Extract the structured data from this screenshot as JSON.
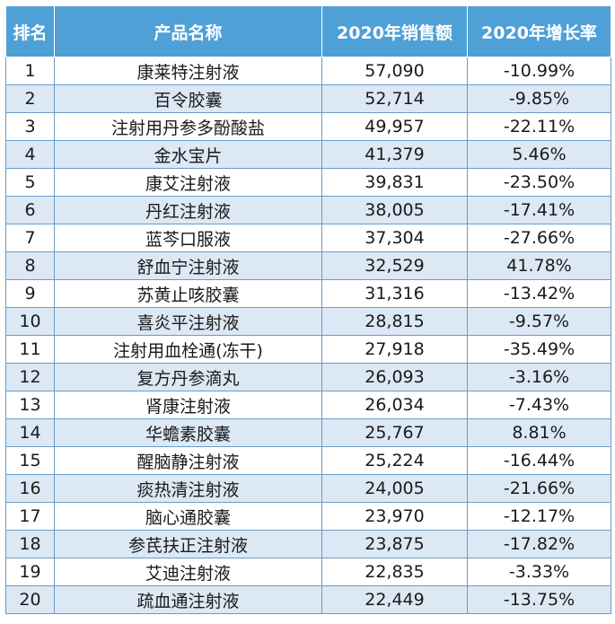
{
  "table": {
    "headers": [
      "排名",
      "产品名称",
      "2020年销售额",
      "2020年增长率"
    ],
    "rows": [
      {
        "rank": "1",
        "name": "康莱特注射液",
        "sales": "57,090",
        "growth": "-10.99%"
      },
      {
        "rank": "2",
        "name": "百令胶囊",
        "sales": "52,714",
        "growth": "-9.85%"
      },
      {
        "rank": "3",
        "name": "注射用丹参多酚酸盐",
        "sales": "49,957",
        "growth": "-22.11%"
      },
      {
        "rank": "4",
        "name": "金水宝片",
        "sales": "41,379",
        "growth": "5.46%"
      },
      {
        "rank": "5",
        "name": "康艾注射液",
        "sales": "39,831",
        "growth": "-23.50%"
      },
      {
        "rank": "6",
        "name": "丹红注射液",
        "sales": "38,005",
        "growth": "-17.41%"
      },
      {
        "rank": "7",
        "name": "蓝芩口服液",
        "sales": "37,304",
        "growth": "-27.66%"
      },
      {
        "rank": "8",
        "name": "舒血宁注射液",
        "sales": "32,529",
        "growth": "41.78%"
      },
      {
        "rank": "9",
        "name": "苏黄止咳胶囊",
        "sales": "31,316",
        "growth": "-13.42%"
      },
      {
        "rank": "10",
        "name": "喜炎平注射液",
        "sales": "28,815",
        "growth": "-9.57%"
      },
      {
        "rank": "11",
        "name": "注射用血栓通(冻干)",
        "sales": "27,918",
        "growth": "-35.49%"
      },
      {
        "rank": "12",
        "name": "复方丹参滴丸",
        "sales": "26,093",
        "growth": "-3.16%"
      },
      {
        "rank": "13",
        "name": "肾康注射液",
        "sales": "26,034",
        "growth": "-7.43%"
      },
      {
        "rank": "14",
        "name": "华蟾素胶囊",
        "sales": "25,767",
        "growth": "8.81%"
      },
      {
        "rank": "15",
        "name": "醒脑静注射液",
        "sales": "25,224",
        "growth": "-16.44%"
      },
      {
        "rank": "16",
        "name": "痰热清注射液",
        "sales": "24,005",
        "growth": "-21.66%"
      },
      {
        "rank": "17",
        "name": "脑心通胶囊",
        "sales": "23,970",
        "growth": "-12.17%"
      },
      {
        "rank": "18",
        "name": "参芪扶正注射液",
        "sales": "23,875",
        "growth": "-17.82%"
      },
      {
        "rank": "19",
        "name": "艾迪注射液",
        "sales": "22,835",
        "growth": "-3.33%"
      },
      {
        "rank": "20",
        "name": "疏血通注射液",
        "sales": "22,449",
        "growth": "-13.75%"
      }
    ]
  }
}
